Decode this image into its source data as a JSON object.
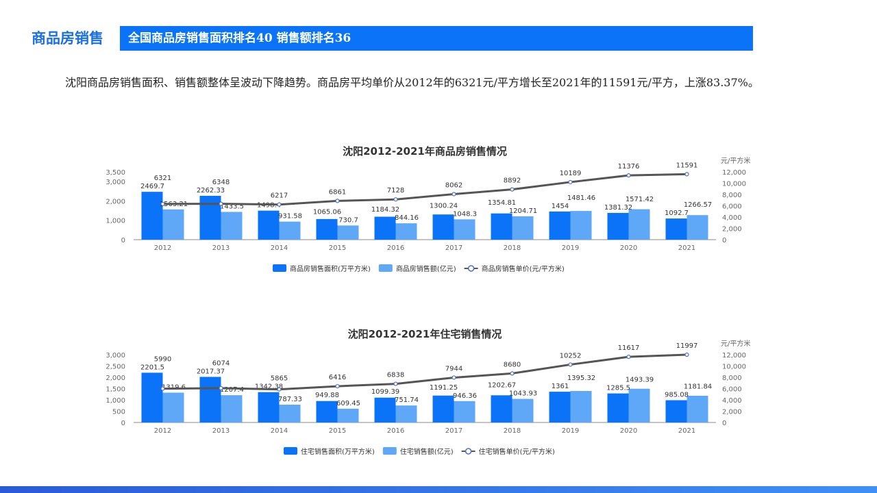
{
  "header": {
    "section": "商品房销售",
    "banner": "全国商品房销售面积排名40 销售额排名36"
  },
  "description": "沈阳商品房销售面积、销售额整体呈波动下降趋势。商品房平均单价从2012年的6321元/平方增长至2021年的11591元/平方，上涨83.37%。",
  "colors": {
    "area": "#0a73f7",
    "amount": "#5ea8f7",
    "price": "#555555",
    "accent": "#0a73f7"
  },
  "chart_data": [
    {
      "type": "bar+line",
      "title": "沈阳2012-2021年商品房销售情况",
      "y2label": "元/平方米",
      "categories": [
        "2012",
        "2013",
        "2014",
        "2015",
        "2016",
        "2017",
        "2018",
        "2019",
        "2020",
        "2021"
      ],
      "ylim": [
        0,
        3500
      ],
      "yticks": [
        "0",
        "1,000",
        "2,000",
        "3,000",
        "3,500"
      ],
      "ytickvals": [
        0,
        1000,
        2000,
        3000,
        3500
      ],
      "y2lim": [
        0,
        12000
      ],
      "y2ticks": [
        "0",
        "2,000",
        "4,000",
        "6,000",
        "8,000",
        "10,000",
        "12,000"
      ],
      "series": [
        {
          "name": "商品房销售面积(万平方米)",
          "kind": "bar",
          "values": [
            2469.7,
            2262.33,
            1498.4,
            1065.06,
            1184.32,
            1300.24,
            1354.81,
            1454,
            1381.32,
            1092.7
          ]
        },
        {
          "name": "商品房销售额(亿元)",
          "kind": "bar",
          "values": [
            1563.21,
            1433.5,
            931.58,
            730.7,
            844.16,
            1048.3,
            1204.71,
            1481.46,
            1571.42,
            1266.57
          ]
        },
        {
          "name": "商品房销售单价(元/平方米)",
          "kind": "line",
          "axis": "right",
          "values": [
            6321,
            6348,
            6217,
            6861,
            7128,
            8062,
            8892,
            10189,
            11376,
            11591
          ]
        }
      ],
      "legend": "bottom",
      "grid": false
    },
    {
      "type": "bar+line",
      "title": "沈阳2012-2021年住宅销售情况",
      "y2label": "元/平方米",
      "categories": [
        "2012",
        "2013",
        "2014",
        "2015",
        "2016",
        "2017",
        "2018",
        "2019",
        "2020",
        "2021"
      ],
      "ylim": [
        0,
        3000
      ],
      "yticks": [
        "0",
        "500",
        "1,000",
        "1,500",
        "2,000",
        "2,500",
        "3,000"
      ],
      "ytickvals": [
        0,
        500,
        1000,
        1500,
        2000,
        2500,
        3000
      ],
      "y2lim": [
        0,
        12000
      ],
      "y2ticks": [
        "0",
        "2,000",
        "4,000",
        "6,000",
        "8,000",
        "10,000",
        "12,000"
      ],
      "series": [
        {
          "name": "住宅销售面积(万平方米)",
          "kind": "bar",
          "values": [
            2201.5,
            2017.37,
            1342.38,
            949.88,
            1099.39,
            1191.25,
            1202.67,
            1361,
            1285.5,
            985.08
          ]
        },
        {
          "name": "住宅销售额(亿元)",
          "kind": "bar",
          "values": [
            1319.6,
            1207.4,
            787.33,
            609.45,
            751.74,
            946.36,
            1043.93,
            1395.32,
            1493.39,
            1181.84
          ]
        },
        {
          "name": "住宅销售单价(元/平方米)",
          "kind": "line",
          "axis": "right",
          "values": [
            5990,
            6074,
            5865,
            6416,
            6838,
            7944,
            8680,
            10252,
            11617,
            11997
          ]
        }
      ],
      "legend": "bottom",
      "grid": false
    }
  ]
}
